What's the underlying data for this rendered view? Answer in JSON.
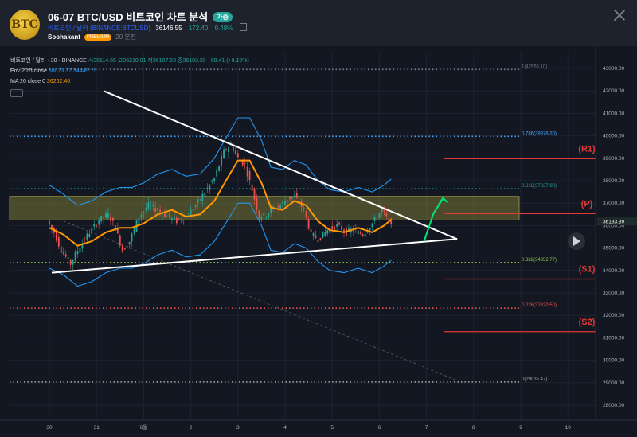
{
  "header": {
    "avatar_text": "BTC",
    "title": "06-07 BTC/USD 비트코인 차트 분석",
    "badge": "가중",
    "symbol_line": "비트코인 / 달러 (BINANCE:BTCUSD)",
    "price": "36146.55",
    "change": "172.40",
    "change_pct": "0.48%",
    "author": "Soohakant",
    "author_badge": "PREMIUM",
    "time_ago": "20 분전"
  },
  "legend": {
    "series_label": "비트코인 / 달러 · 30 · BINANCE",
    "ohlc_open": "시36114.65",
    "ohlc_high": "고36210.01",
    "ohlc_low": "저36107.59",
    "ohlc_close": "종36183.39",
    "ohlc_change": "+68.41 (+0.19%)",
    "env_label": "Env 20 5 close",
    "env_values": "38073.37  34449.15",
    "ma_label": "MA 20 close 0",
    "ma_value": "36262.46"
  },
  "colors": {
    "background": "#131722",
    "up": "#26a69a",
    "down": "#ef5350",
    "ma": "#ff9800",
    "envelope": "#2196f3",
    "zone": "#8b8b3a",
    "resistance": "#e53935",
    "arrow": "#00e676"
  },
  "chart_data": {
    "type": "line",
    "title": "06-07 BTC/USD 비트코인 차트 분석",
    "ylim": [
      27500,
      43500
    ],
    "y_ticks": [
      43000,
      42000,
      41000,
      40000,
      39000,
      38000,
      37000,
      36000,
      35000,
      34000,
      33000,
      32000,
      31000,
      30000,
      29000,
      28000
    ],
    "x_ticks": [
      "30",
      "31",
      "6월",
      "2",
      "3",
      "4",
      "5",
      "6",
      "7",
      "8",
      "9",
      "10"
    ],
    "current_price_label": "36183.39",
    "fib_levels": [
      {
        "label": "1(42955.10)",
        "value": 42955.1,
        "color": "#787b86"
      },
      {
        "label": "0.786(39976.30)",
        "value": 39976.3,
        "color": "#42a5f5"
      },
      {
        "label": "0.618(37637.80)",
        "value": 37637.8,
        "color": "#26a69a"
      },
      {
        "label": "0.382(34352.77)",
        "value": 34352.77,
        "color": "#8bc34a"
      },
      {
        "label": "0.236(32320.50)",
        "value": 32320.5,
        "color": "#ef5350"
      },
      {
        "label": "0(29035.47)",
        "value": 29035.47,
        "color": "#9e9e9e"
      }
    ],
    "pivots": [
      {
        "label": "(R1)",
        "value": 38980
      },
      {
        "label": "(P)",
        "value": 36530
      },
      {
        "label": "(S1)",
        "value": 33620
      },
      {
        "label": "(S2)",
        "value": 31270
      }
    ],
    "zone": [
      36250,
      37300
    ],
    "price_series": [
      [
        0,
        36200
      ],
      [
        0.15,
        35700
      ],
      [
        0.3,
        34900
      ],
      [
        0.5,
        34300
      ],
      [
        0.7,
        35100
      ],
      [
        0.9,
        35700
      ],
      [
        1.1,
        36250
      ],
      [
        1.3,
        36500
      ],
      [
        1.45,
        35900
      ],
      [
        1.6,
        34900
      ],
      [
        1.75,
        35300
      ],
      [
        1.95,
        36400
      ],
      [
        2.15,
        36900
      ],
      [
        2.35,
        36700
      ],
      [
        2.55,
        36400
      ],
      [
        2.75,
        36200
      ],
      [
        2.95,
        36400
      ],
      [
        3.15,
        36900
      ],
      [
        3.35,
        37500
      ],
      [
        3.55,
        38100
      ],
      [
        3.75,
        39300
      ],
      [
        3.9,
        39600
      ],
      [
        4.05,
        39000
      ],
      [
        4.2,
        38700
      ],
      [
        4.35,
        37600
      ],
      [
        4.5,
        36400
      ],
      [
        4.65,
        36500
      ],
      [
        4.8,
        36800
      ],
      [
        4.95,
        36900
      ],
      [
        5.1,
        37200
      ],
      [
        5.25,
        37300
      ],
      [
        5.45,
        36700
      ],
      [
        5.6,
        35600
      ],
      [
        5.75,
        35400
      ],
      [
        5.95,
        35800
      ],
      [
        6.15,
        36000
      ],
      [
        6.35,
        35700
      ],
      [
        6.5,
        35800
      ],
      [
        6.7,
        35600
      ],
      [
        6.9,
        36100
      ],
      [
        7.1,
        36700
      ],
      [
        7.25,
        36183
      ]
    ],
    "ma_series": [
      [
        0,
        35900
      ],
      [
        0.3,
        35600
      ],
      [
        0.6,
        35100
      ],
      [
        0.9,
        35300
      ],
      [
        1.2,
        35700
      ],
      [
        1.5,
        35900
      ],
      [
        1.75,
        35900
      ],
      [
        2.0,
        36100
      ],
      [
        2.3,
        36500
      ],
      [
        2.6,
        36700
      ],
      [
        2.9,
        36400
      ],
      [
        3.2,
        36500
      ],
      [
        3.5,
        37100
      ],
      [
        3.8,
        38200
      ],
      [
        4.0,
        38900
      ],
      [
        4.25,
        38900
      ],
      [
        4.5,
        37900
      ],
      [
        4.7,
        36800
      ],
      [
        4.95,
        36700
      ],
      [
        5.2,
        37100
      ],
      [
        5.45,
        36900
      ],
      [
        5.7,
        36200
      ],
      [
        5.95,
        35800
      ],
      [
        6.25,
        35700
      ],
      [
        6.55,
        35900
      ],
      [
        6.85,
        35700
      ],
      [
        7.1,
        36000
      ],
      [
        7.25,
        36262
      ]
    ],
    "envelope_upper": [
      [
        0,
        37800
      ],
      [
        0.3,
        37400
      ],
      [
        0.6,
        36900
      ],
      [
        0.9,
        37100
      ],
      [
        1.2,
        37500
      ],
      [
        1.5,
        37700
      ],
      [
        1.75,
        37700
      ],
      [
        2.0,
        37900
      ],
      [
        2.3,
        38300
      ],
      [
        2.6,
        38500
      ],
      [
        2.9,
        38200
      ],
      [
        3.2,
        38300
      ],
      [
        3.5,
        39000
      ],
      [
        3.8,
        40100
      ],
      [
        4.0,
        40800
      ],
      [
        4.25,
        40800
      ],
      [
        4.5,
        39800
      ],
      [
        4.7,
        38600
      ],
      [
        4.95,
        38500
      ],
      [
        5.2,
        38900
      ],
      [
        5.45,
        38700
      ],
      [
        5.7,
        38000
      ],
      [
        5.95,
        37600
      ],
      [
        6.25,
        37500
      ],
      [
        6.55,
        37700
      ],
      [
        6.85,
        37500
      ],
      [
        7.1,
        37800
      ],
      [
        7.25,
        38073
      ]
    ],
    "envelope_lower": [
      [
        0,
        34100
      ],
      [
        0.3,
        33800
      ],
      [
        0.6,
        33300
      ],
      [
        0.9,
        33500
      ],
      [
        1.2,
        33900
      ],
      [
        1.5,
        34100
      ],
      [
        1.75,
        34100
      ],
      [
        2.0,
        34300
      ],
      [
        2.3,
        34700
      ],
      [
        2.6,
        34900
      ],
      [
        2.9,
        34600
      ],
      [
        3.2,
        34700
      ],
      [
        3.5,
        35300
      ],
      [
        3.8,
        36300
      ],
      [
        4.0,
        37000
      ],
      [
        4.25,
        37000
      ],
      [
        4.5,
        36000
      ],
      [
        4.7,
        34900
      ],
      [
        4.95,
        34800
      ],
      [
        5.2,
        35200
      ],
      [
        5.45,
        35000
      ],
      [
        5.7,
        34400
      ],
      [
        5.95,
        34000
      ],
      [
        6.25,
        33900
      ],
      [
        6.55,
        34100
      ],
      [
        6.85,
        33900
      ],
      [
        7.1,
        34200
      ],
      [
        7.25,
        34449
      ]
    ],
    "triangle_upper": [
      [
        1.15,
        42000
      ],
      [
        8.65,
        35400
      ]
    ],
    "triangle_lower": [
      [
        0.05,
        33900
      ],
      [
        8.65,
        35400
      ]
    ],
    "dashed_trend": [
      [
        0.3,
        36200
      ],
      [
        8.65,
        29100
      ]
    ],
    "arrow_path": [
      [
        7.95,
        35300
      ],
      [
        8.15,
        36550
      ],
      [
        8.35,
        37200
      ]
    ]
  }
}
